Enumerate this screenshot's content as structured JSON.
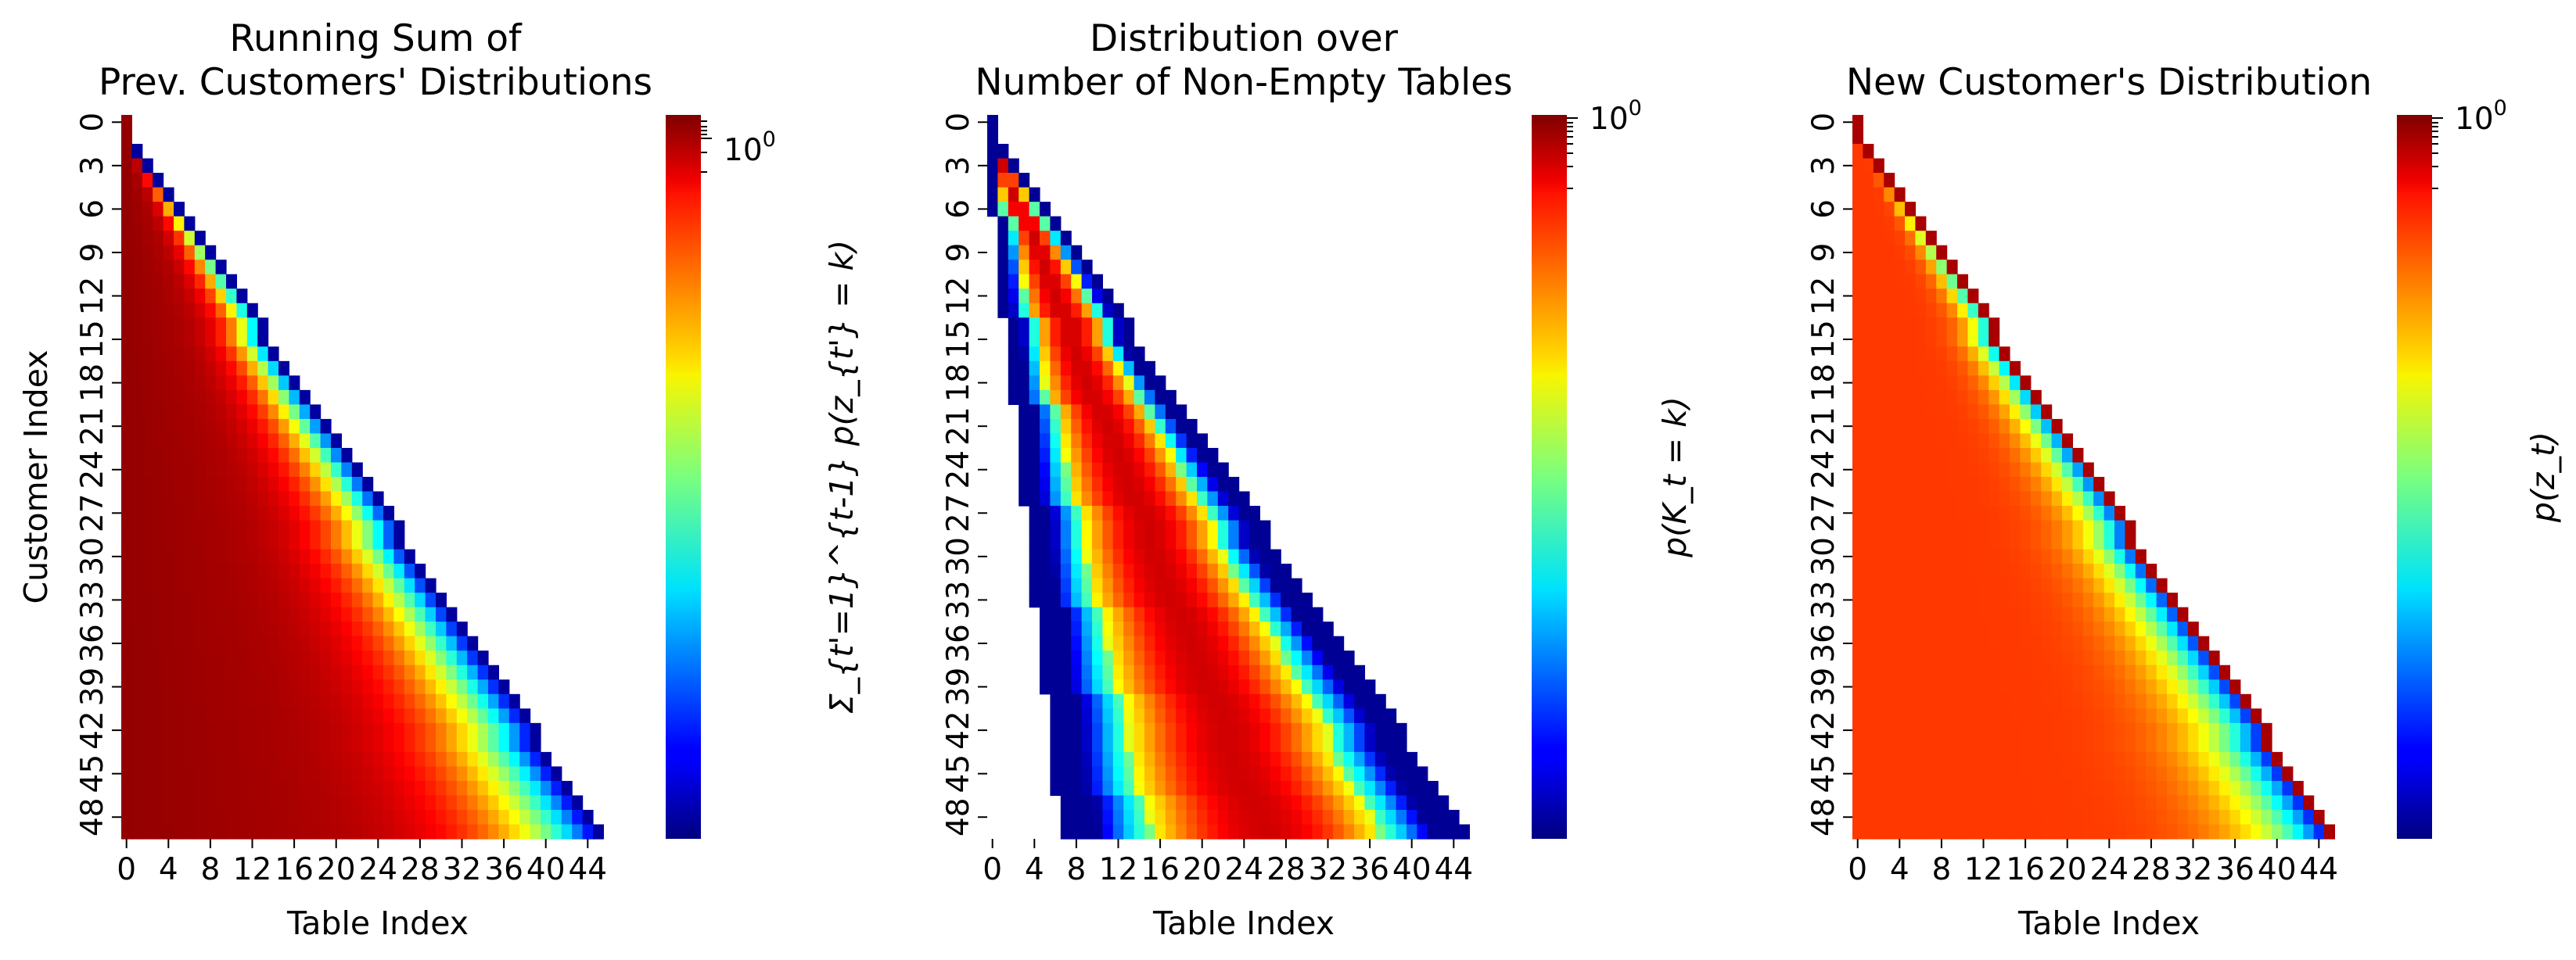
{
  "colormap": "jet",
  "chart_data": [
    {
      "type": "heatmap",
      "title_lines": [
        "Running Sum of",
        "Prev. Customers' Distributions"
      ],
      "xlabel": "Table Index",
      "ylabel": "Customer Index",
      "n_rows": 50,
      "n_cols": 50,
      "x_tick_labels": [
        "0",
        "4",
        "8",
        "12",
        "16",
        "20",
        "24",
        "28",
        "32",
        "36",
        "40",
        "44"
      ],
      "y_tick_labels": [
        "0",
        "3",
        "6",
        "9",
        "12",
        "15",
        "18",
        "21",
        "24",
        "27",
        "30",
        "33",
        "36",
        "39",
        "42",
        "45",
        "48"
      ],
      "colorbar_label": "Σ_{t'=1}^{t-1} p(z_{t'} = k)",
      "colorbar_tick_labels": [
        "10",
        "0"
      ],
      "description_of_values": "lower-triangular; deep red on left columns, shifting to red/yellow/cyan/blue toward the diagonal edge"
    },
    {
      "type": "heatmap",
      "title_lines": [
        "Distribution over",
        "Number of Non-Empty Tables"
      ],
      "xlabel": "Table Index",
      "ylabel": "",
      "n_rows": 50,
      "n_cols": 50,
      "x_tick_labels": [
        "0",
        "4",
        "8",
        "12",
        "16",
        "20",
        "24",
        "28",
        "32",
        "36",
        "40",
        "44"
      ],
      "y_tick_labels": [
        "0",
        "3",
        "6",
        "9",
        "12",
        "15",
        "18",
        "21",
        "24",
        "27",
        "30",
        "33",
        "36",
        "39",
        "42",
        "45",
        "48"
      ],
      "colorbar_label": "p(K_t = k)",
      "colorbar_tick_labels": [
        "10",
        "0"
      ],
      "description_of_values": "band along the diagonal peaked in red, fading to yellow/cyan/blue on both edges"
    },
    {
      "type": "heatmap",
      "title_lines": [
        "New Customer's Distribution"
      ],
      "xlabel": "Table Index",
      "ylabel": "",
      "n_rows": 50,
      "n_cols": 50,
      "x_tick_labels": [
        "0",
        "4",
        "8",
        "12",
        "16",
        "20",
        "24",
        "28",
        "32",
        "36",
        "40",
        "44"
      ],
      "y_tick_labels": [
        "0",
        "3",
        "6",
        "9",
        "12",
        "15",
        "18",
        "21",
        "24",
        "27",
        "30",
        "33",
        "36",
        "39",
        "42",
        "45",
        "48"
      ],
      "colorbar_label": "p(z_t)",
      "colorbar_tick_labels": [
        "10",
        "0"
      ],
      "description_of_values": "lower-triangular; mostly orange-red, darker red along the diagonal, fading to cyan/blue near the edge"
    }
  ]
}
